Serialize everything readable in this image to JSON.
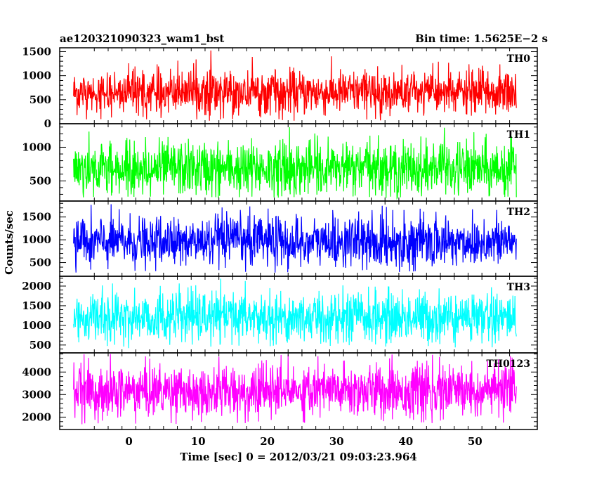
{
  "header": {
    "title": "ae120321090323_wam1_bst",
    "bin_time": "Bin time: 1.5625E−2 s"
  },
  "chart_data": {
    "type": "line",
    "xlabel": "Time [sec] 0 = 2012/03/21 09:03:23.964",
    "ylabel": "Counts/sec",
    "xlim": [
      -10,
      59
    ],
    "x_data_range": [
      -8,
      56
    ],
    "x_ticks": [
      0,
      10,
      20,
      30,
      40,
      50
    ],
    "x_tick_labels": [
      "0",
      "10",
      "20",
      "30",
      "40",
      "50"
    ],
    "panels": [
      {
        "name": "TH0",
        "color": "#ff0000",
        "ylim": [
          0,
          1580
        ],
        "y_ticks": [
          0,
          500,
          1000,
          1500
        ],
        "y_tick_labels": [
          "0",
          "500",
          "1000",
          "1500"
        ],
        "mean": 650,
        "spread": 230,
        "min": 60,
        "max": 1560
      },
      {
        "name": "TH1",
        "color": "#00ff00",
        "ylim": [
          200,
          1350
        ],
        "y_ticks": [
          500,
          1000
        ],
        "y_tick_labels": [
          "500",
          "1000"
        ],
        "mean": 680,
        "spread": 200,
        "min": 240,
        "max": 1320
      },
      {
        "name": "TH2",
        "color": "#0000ff",
        "ylim": [
          200,
          1850
        ],
        "y_ticks": [
          500,
          1000,
          1500
        ],
        "y_tick_labels": [
          "500",
          "1000",
          "1500"
        ],
        "mean": 950,
        "spread": 280,
        "min": 270,
        "max": 1830
      },
      {
        "name": "TH3",
        "color": "#00ffff",
        "ylim": [
          300,
          2250
        ],
        "y_ticks": [
          500,
          1000,
          1500,
          2000
        ],
        "y_tick_labels": [
          "500",
          "1000",
          "1500",
          "2000"
        ],
        "mean": 1200,
        "spread": 330,
        "min": 420,
        "max": 2230
      },
      {
        "name": "TH0123",
        "color": "#ff00ff",
        "ylim": [
          1450,
          4850
        ],
        "y_ticks": [
          2000,
          3000,
          4000
        ],
        "y_tick_labels": [
          "2000",
          "3000",
          "4000"
        ],
        "mean": 3150,
        "spread": 600,
        "min": 1650,
        "max": 4800
      }
    ]
  }
}
